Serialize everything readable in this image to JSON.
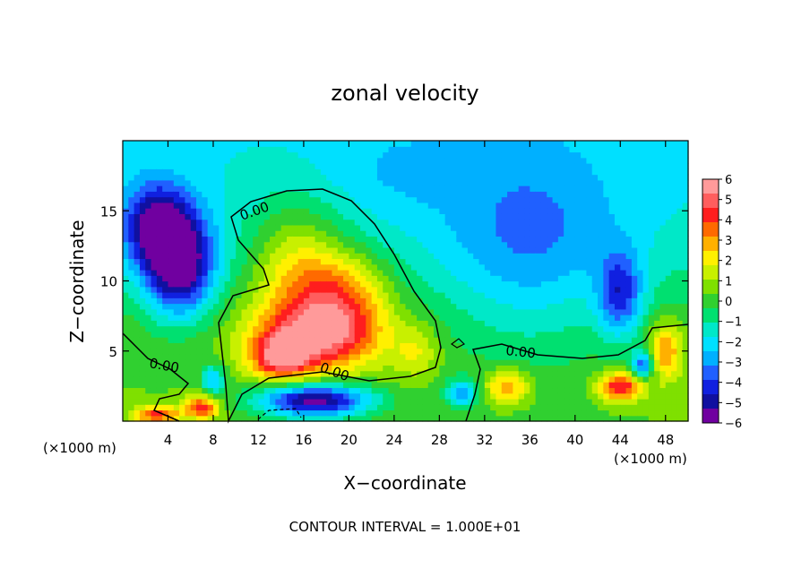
{
  "chart_data": {
    "type": "heatmap",
    "title": "zonal velocity",
    "xlabel": "X−coordinate",
    "ylabel": "Z−coordinate",
    "x_unit_label_left": "(×1000 m)",
    "x_unit_label_right": "(×1000 m)",
    "footer": "CONTOUR INTERVAL = 1.000E+01",
    "xlim": [
      0,
      50
    ],
    "ylim": [
      0,
      20
    ],
    "x_ticks": [
      4,
      8,
      12,
      16,
      20,
      24,
      28,
      32,
      36,
      40,
      44,
      48
    ],
    "y_ticks": [
      5,
      10,
      15
    ],
    "colorbar": {
      "range": [
        -6,
        6
      ],
      "tick_labels": [
        "6",
        "5",
        "4",
        "3",
        "2",
        "1",
        "0",
        "−1",
        "−2",
        "−3",
        "−4",
        "−5",
        "−6"
      ],
      "colors": [
        "#ff9a9a",
        "#ff5e5e",
        "#ff1e1e",
        "#ff6a00",
        "#ffb000",
        "#fff000",
        "#c8f000",
        "#7fe000",
        "#30d030",
        "#00e070",
        "#00e8c8",
        "#00e0ff",
        "#00b0ff",
        "#2060ff",
        "#1020e0",
        "#1010a0",
        "#7000a0"
      ]
    },
    "contour_labels": [
      "0.00",
      "0.00",
      "0.00",
      "0.00"
    ],
    "blobs": [
      {
        "x": 17,
        "z": 6,
        "value": 4.8,
        "sx": 5.5,
        "sz": 2.4
      },
      {
        "x": 14,
        "z": 4.5,
        "value": 4.0,
        "sx": 2.5,
        "sz": 1.5
      },
      {
        "x": 16,
        "z": 10,
        "value": 3.0,
        "sx": 4.5,
        "sz": 3.5
      },
      {
        "x": 20,
        "z": 9,
        "value": 2.5,
        "sx": 4.0,
        "sz": 3.0
      },
      {
        "x": 15,
        "z": 14,
        "value": 1.2,
        "sx": 4.0,
        "sz": 3.0
      },
      {
        "x": 5,
        "z": 11,
        "value": -5.5,
        "sx": 3.0,
        "sz": 3.5
      },
      {
        "x": 3,
        "z": 14,
        "value": -4.0,
        "sx": 3.0,
        "sz": 3.0
      },
      {
        "x": 44,
        "z": 9,
        "value": -3.5,
        "sx": 2.0,
        "sz": 3.0
      },
      {
        "x": 44,
        "z": 2.5,
        "value": 4.5,
        "sx": 2.0,
        "sz": 1.0
      },
      {
        "x": 48,
        "z": 5,
        "value": 3.0,
        "sx": 1.5,
        "sz": 2.0
      },
      {
        "x": 34,
        "z": 2.5,
        "value": 3.0,
        "sx": 2.0,
        "sz": 1.2
      },
      {
        "x": 17,
        "z": 1.5,
        "value": -6.0,
        "sx": 5.0,
        "sz": 1.2
      },
      {
        "x": 7,
        "z": 1,
        "value": 4.0,
        "sx": 1.5,
        "sz": 0.8
      },
      {
        "x": 3,
        "z": 0.5,
        "value": 4.0,
        "sx": 2.0,
        "sz": 0.6
      },
      {
        "x": 30,
        "z": 2,
        "value": -3.0,
        "sx": 1.5,
        "sz": 1.0
      },
      {
        "x": 46,
        "z": 4,
        "value": -4.0,
        "sx": 1.0,
        "sz": 1.0
      },
      {
        "x": 8,
        "z": 3,
        "value": -3.0,
        "sx": 1.0,
        "sz": 1.0
      },
      {
        "x": 26,
        "z": 5,
        "value": 1.5,
        "sx": 2.0,
        "sz": 2.0
      },
      {
        "x": 36,
        "z": 12,
        "value": -2.0,
        "sx": 8.0,
        "sz": 8.0
      },
      {
        "x": 25,
        "z": 18,
        "value": -0.8,
        "sx": 6.0,
        "sz": 3.0
      }
    ],
    "base_field": {
      "upper_value": -1.8,
      "lower_value": 0.4,
      "transition_z": 10
    }
  }
}
